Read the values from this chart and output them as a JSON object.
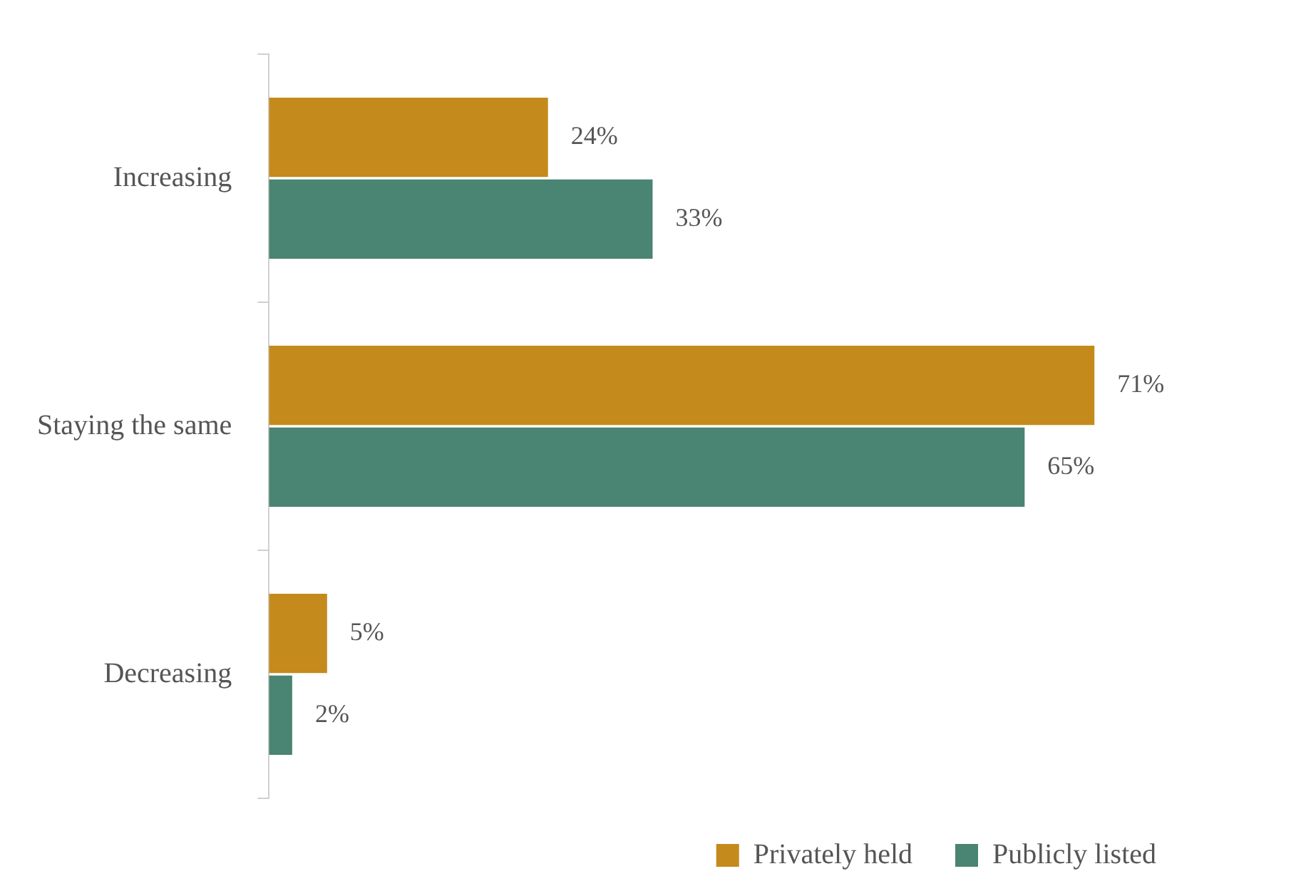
{
  "chart_data": {
    "type": "bar",
    "orientation": "horizontal",
    "categories": [
      "Increasing",
      "Staying the same",
      "Decreasing"
    ],
    "series": [
      {
        "name": "Privately held",
        "color": "#c48a1c",
        "values": [
          24,
          71,
          5
        ],
        "value_labels": [
          "24%",
          "71%",
          "5%"
        ]
      },
      {
        "name": "Publicly listed",
        "color": "#4a8472",
        "values": [
          33,
          65,
          2
        ],
        "value_labels": [
          "33%",
          "65%",
          "2%"
        ]
      }
    ],
    "legend": "bottom right",
    "grid": false
  }
}
